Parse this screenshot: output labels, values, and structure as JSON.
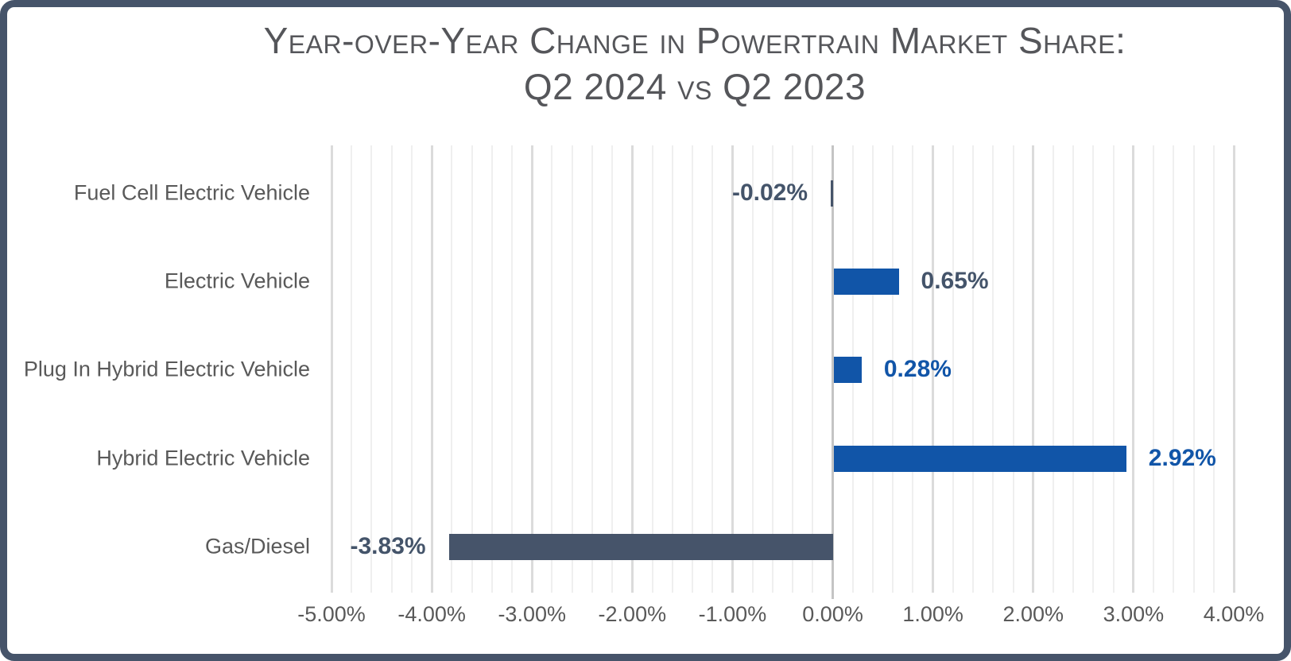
{
  "title": {
    "line1": "Year-over-Year Change in Powertrain Market Share:",
    "line2": "Q2 2024 vs Q2 2023"
  },
  "chart_data": {
    "type": "bar",
    "orientation": "horizontal",
    "title": "Year-over-Year Change in Powertrain Market Share: Q2 2024 vs Q2 2023",
    "categories": [
      "Fuel Cell Electric Vehicle",
      "Electric Vehicle",
      "Plug In Hybrid Electric Vehicle",
      "Hybrid Electric Vehicle",
      "Gas/Diesel"
    ],
    "values": [
      -0.02,
      0.65,
      0.28,
      2.92,
      -3.83
    ],
    "value_labels": [
      "-0.02%",
      "0.65%",
      "0.28%",
      "2.92%",
      "-3.83%"
    ],
    "bar_color_keys": [
      "negative_bar",
      "positive_bar",
      "positive_bar",
      "positive_bar",
      "negative_bar"
    ],
    "value_label_color_keys": [
      "label_navy",
      "label_navy",
      "label_blue",
      "label_blue",
      "label_navy"
    ],
    "xlabel": "",
    "ylabel": "",
    "xlim": [
      -5.0,
      4.0
    ],
    "x_major_step": 1.0,
    "x_minor_step": 0.2,
    "x_tick_labels": [
      "-5.00%",
      "-4.00%",
      "-3.00%",
      "-2.00%",
      "-1.00%",
      "0.00%",
      "1.00%",
      "2.00%",
      "3.00%",
      "4.00%"
    ],
    "grid": "vertical, major and minor, on",
    "legend": "none"
  },
  "colors": {
    "positive_bar": "#1155A8",
    "negative_bar": "#46546A",
    "label_blue": "#1155A8",
    "label_navy": "#44546A",
    "category_text": "#595959",
    "tick_text": "#595959",
    "title_text": "#55565A",
    "border": "#46546A",
    "grid_major": "#DBDBDB",
    "grid_minor": "#EFEFEF",
    "axis_line": "#C4C4C4",
    "background": "#FFFFFF"
  }
}
